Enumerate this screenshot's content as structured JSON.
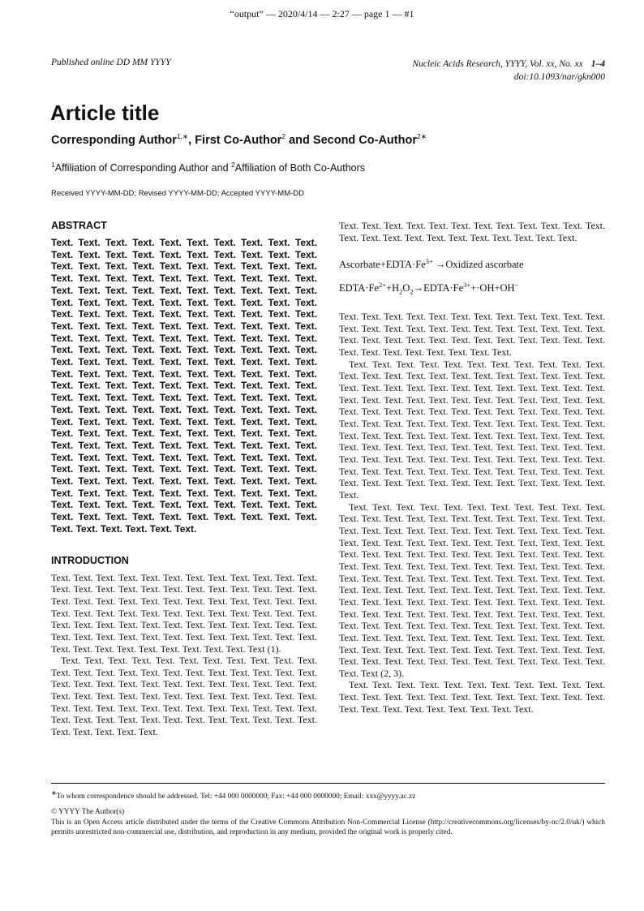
{
  "running_header": "“output” — 2020/4/14 — 2:27 — page 1 — #1",
  "published": "Published online DD MM YYYY",
  "journal": {
    "citation": "Nucleic Acids Research, YYYY, Vol. xx, No. xx",
    "pages": "1–4",
    "doi": "doi:10.1093/nar/gkn000"
  },
  "title": "Article title",
  "authors": [
    {
      "name": "Corresponding Author",
      "sup": "1,∗",
      "sep": ", "
    },
    {
      "name": "First Co-Author",
      "sup": "2",
      "sep": " and "
    },
    {
      "name": "Second Co-Author",
      "sup": "2∗",
      "sep": ""
    }
  ],
  "affiliation": {
    "sup1": "1",
    "text1": "Affiliation of Corresponding Author and ",
    "sup2": "2",
    "text2": "Affiliation of Both Co-Authors"
  },
  "received": "Received YYYY-MM-DD; Revised YYYY-MM-DD; Accepted YYYY-MM-DD",
  "abstract": {
    "heading": "ABSTRACT",
    "text": "Text. Text. Text. Text. Text. Text. Text. Text. Text. Text. Text. Text. Text. Text. Text. Text. Text. Text. Text. Text. Text. Text. Text. Text. Text. Text. Text. Text. Text. Text. Text. Text. Text. Text. Text. Text. Text. Text. Text. Text. Text. Text. Text. Text. Text. Text. Text. Text. Text. Text. Text. Text. Text. Text. Text. Text. Text. Text. Text. Text. Text. Text. Text. Text. Text. Text. Text. Text. Text. Text. Text. Text. Text. Text. Text. Text. Text. Text. Text. Text. Text. Text. Text. Text. Text. Text. Text. Text. Text. Text. Text. Text. Text. Text. Text. Text. Text. Text. Text. Text. Text. Text. Text. Text. Text. Text. Text. Text. Text. Text. Text. Text. Text. Text. Text. Text. Text. Text. Text. Text. Text. Text. Text. Text. Text. Text. Text. Text. Text. Text. Text. Text. Text. Text. Text. Text. Text. Text. Text. Text. Text. Text. Text. Text. Text. Text. Text. Text. Text. Text. Text. Text. Text. Text. Text. Text. Text. Text. Text. Text. Text. Text. Text. Text. Text. Text. Text. Text. Text. Text. Text. Text. Text. Text. Text. Text. Text. Text. Text. Text. Text. Text. Text. Text. Text. Text. Text. Text. Text. Text. Text. Text. Text. Text. Text. Text. Text. Text. Text. Text. Text. Text. Text. Text. Text. Text. Text. Text. Text. Text. Text. Text. Text. Text. Text. Text. Text. Text. Text. Text. Text. Text. Text. Text. Text. Text. Text. Text. Text. Text. Text. Text. Text. Text. Text. Text. Text. Text. Text. Text. Text. Text. Text. Text. Text. Text."
  },
  "introduction": {
    "heading": "INTRODUCTION",
    "p1": "Text. Text. Text. Text. Text. Text. Text. Text. Text. Text. Text. Text. Text. Text. Text. Text. Text. Text. Text. Text. Text. Text. Text. Text. Text. Text. Text. Text. Text. Text. Text. Text. Text. Text. Text. Text. Text. Text. Text. Text. Text. Text. Text. Text. Text. Text. Text. Text. Text. Text. Text. Text. Text. Text. Text. Text. Text. Text. Text. Text. Text. Text. Text. Text. Text. Text. Text. Text. Text. Text. Text. Text. Text. Text. Text. Text. Text. Text. Text. Text. Text. Text (1).",
    "p2_left": "Text. Text. Text. Text. Text. Text. Text. Text. Text. Text. Text. Text. Text. Text. Text. Text. Text. Text. Text. Text. Text. Text. Text. Text. Text. Text. Text. Text. Text. Text. Text. Text. Text. Text. Text. Text. Text. Text. Text. Text. Text. Text. Text. Text. Text. Text. Text. Text. Text. Text. Text. Text. Text. Text. Text. Text. Text. Text. Text. Text. Text. Text. Text. Text. Text. Text. Text. Text. Text. Text. Text. Text. Text. Text. Text. Text.",
    "p2_right": "Text. Text. Text. Text. Text. Text. Text. Text. Text. Text. Text. Text. Text. Text. Text. Text. Text. Text. Text. Text. Text. Text. Text.",
    "equations": {
      "eq1": {
        "a": "Ascorbate",
        "plus": "+",
        "b": "EDTA·Fe",
        "b_sup": "3+",
        "arrow": "→",
        "c": "Oxidized ascorbate"
      },
      "eq2": {
        "a": "EDTA·Fe",
        "a_sup": "2+",
        "plus1": "+H",
        "h_sub": "2",
        "o": "O",
        "o_sub": "2",
        "arrow": "→",
        "b": "EDTA·Fe",
        "b_sup": "3+",
        "rest": "+·OH+OH",
        "rest_sup": "−"
      }
    },
    "p3": "Text. Text. Text. Text. Text. Text. Text. Text. Text. Text. Text. Text. Text. Text. Text. Text. Text. Text. Text. Text. Text. Text. Text. Text. Text. Text. Text. Text. Text. Text. Text. Text. Text. Text. Text. Text. Text. Text. Text. Text. Text. Text. Text. Text.",
    "p4": "Text. Text. Text. Text. Text. Text. Text. Text. Text. Text. Text. Text. Text. Text. Text. Text. Text. Text. Text. Text. Text. Text. Text. Text. Text. Text. Text. Text. Text. Text. Text. Text. Text. Text. Text. Text. Text. Text. Text. Text. Text. Text. Text. Text. Text. Text. Text. Text. Text. Text. Text. Text. Text. Text. Text. Text. Text. Text. Text. Text. Text. Text. Text. Text. Text. Text. Text. Text. Text. Text. Text. Text. Text. Text. Text. Text. Text. Text. Text. Text. Text. Text. Text. Text. Text. Text. Text. Text. Text. Text. Text. Text. Text. Text. Text. Text. Text. Text. Text. Text. Text. Text. Text. Text. Text. Text. Text. Text. Text. Text. Text. Text. Text. Text. Text. Text. Text. Text. Text. Text. Text. Text. Text. Text. Text. Text. Text. Text. Text. Text. Text. Text.",
    "p5": "Text. Text. Text. Text. Text. Text. Text. Text. Text. Text. Text. Text. Text. Text. Text. Text. Text. Text. Text. Text. Text. Text. Text. Text. Text. Text. Text. Text. Text. Text. Text. Text. Text. Text. Text. Text. Text. Text. Text. Text. Text. Text. Text. Text. Text. Text. Text. Text. Text. Text. Text. Text. Text. Text. Text. Text. Text. Text. Text. Text. Text. Text. Text. Text. Text. Text. Text. Text. Text. Text. Text. Text. Text. Text. Text. Text. Text. Text. Text. Text. Text. Text. Text. Text. Text. Text. Text. Text. Text. Text. Text. Text. Text. Text. Text. Text. Text. Text. Text. Text. Text. Text. Text. Text. Text. Text. Text. Text. Text. Text. Text. Text. Text. Text. Text. Text. Text. Text. Text. Text. Text. Text. Text. Text. Text. Text. Text. Text. Text. Text. Text. Text. Text. Text. Text. Text. Text. Text. Text. Text. Text. Text. Text. Text. Text. Text. Text. Text. Text. Text. Text. Text. Text. Text. Text. Text. Text. Text. Text. Text. Text. Text. Text. Text. Text. Text. Text. Text. Text (2, 3).",
    "p6": "Text. Text. Text. Text. Text. Text. Text. Text. Text. Text. Text. Text. Text. Text. Text. Text. Text. Text. Text. Text. Text. Text. Text. Text. Text. Text. Text. Text. Text. Text. Text. Text."
  },
  "footnote": {
    "mark": "∗",
    "correspondence": "To whom correspondence should be addressed. Tel: +44 000 0000000; Fax: +44 000 0000000; Email: xxx@yyyy.ac.zz",
    "copyright": "© YYYY The Author(s)",
    "license": "This is an Open Access article distributed under the terms of the Creative Commons Attribution Non-Commercial License (http://creativecommons.org/licenses/by-nc/2.0/uk/) which permits unrestricted non-commercial use, distribution, and reproduction in any medium, provided the original work is properly cited."
  }
}
